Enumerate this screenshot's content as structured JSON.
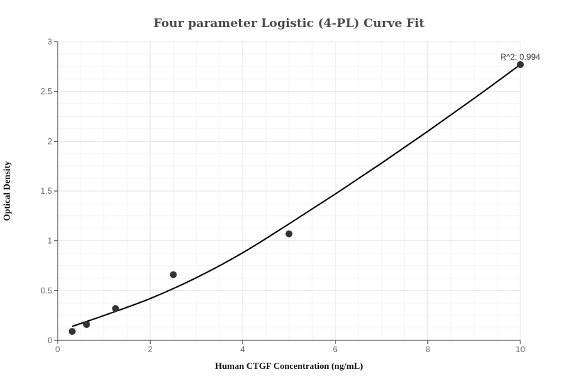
{
  "chart_data": {
    "type": "scatter",
    "title": "Four parameter Logistic (4-PL) Curve Fit",
    "xlabel": "Human CTGF Concentration (ng/mL)",
    "ylabel": "Optical Density",
    "xlim": [
      0,
      10
    ],
    "ylim": [
      0,
      3
    ],
    "x_ticks": [
      0,
      2,
      4,
      6,
      8,
      10
    ],
    "y_ticks": [
      0,
      0.5,
      1,
      1.5,
      2,
      2.5,
      3
    ],
    "x_tick_labels": [
      "0",
      "2",
      "4",
      "6",
      "8",
      "10"
    ],
    "y_tick_labels": [
      "0",
      "0.5",
      "1",
      "1.5",
      "2",
      "2.5",
      "3"
    ],
    "grid": true,
    "points": [
      {
        "x": 0.3125,
        "y": 0.09
      },
      {
        "x": 0.625,
        "y": 0.16
      },
      {
        "x": 1.25,
        "y": 0.32
      },
      {
        "x": 2.5,
        "y": 0.66
      },
      {
        "x": 5,
        "y": 1.07
      },
      {
        "x": 10,
        "y": 2.77
      }
    ],
    "fit_curve": [
      {
        "x": 0.3125,
        "y": 0.14
      },
      {
        "x": 1,
        "y": 0.25
      },
      {
        "x": 2,
        "y": 0.42
      },
      {
        "x": 3,
        "y": 0.63
      },
      {
        "x": 4,
        "y": 0.88
      },
      {
        "x": 5,
        "y": 1.17
      },
      {
        "x": 6,
        "y": 1.47
      },
      {
        "x": 7,
        "y": 1.78
      },
      {
        "x": 8,
        "y": 2.1
      },
      {
        "x": 9,
        "y": 2.43
      },
      {
        "x": 10,
        "y": 2.77
      }
    ],
    "annotation": "R^2: 0.994",
    "colors": {
      "points": "#333333",
      "curve": "#000000",
      "grid": "#e6e6e6"
    }
  }
}
